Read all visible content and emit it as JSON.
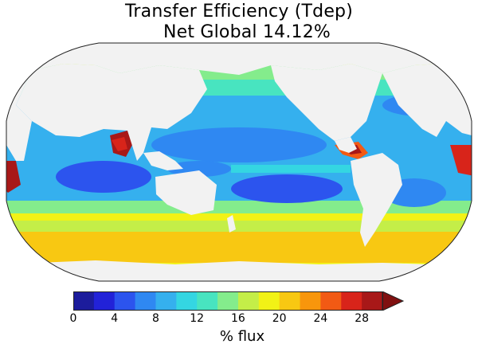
{
  "title": "Transfer Efficiency (Tdep)",
  "subtitle": "Net Global 14.12%",
  "colorbar": {
    "label": "% flux",
    "min": 0,
    "max": 30,
    "step": 2,
    "extend": "max",
    "ticks": [
      0,
      4,
      8,
      12,
      16,
      20,
      24,
      28
    ],
    "colors": [
      "#1c1c9c",
      "#2222d8",
      "#2c54ee",
      "#2f88f2",
      "#35b0ee",
      "#34d6e2",
      "#48e4c0",
      "#84ec8c",
      "#c4ee48",
      "#f2f216",
      "#f8c812",
      "#f8960c",
      "#f25a14",
      "#d8241a",
      "#a81818",
      "#801010"
    ]
  },
  "map": {
    "projection": "robinson",
    "land_color": "#f2f2f2",
    "ocean_background": "#35b0ee"
  }
}
